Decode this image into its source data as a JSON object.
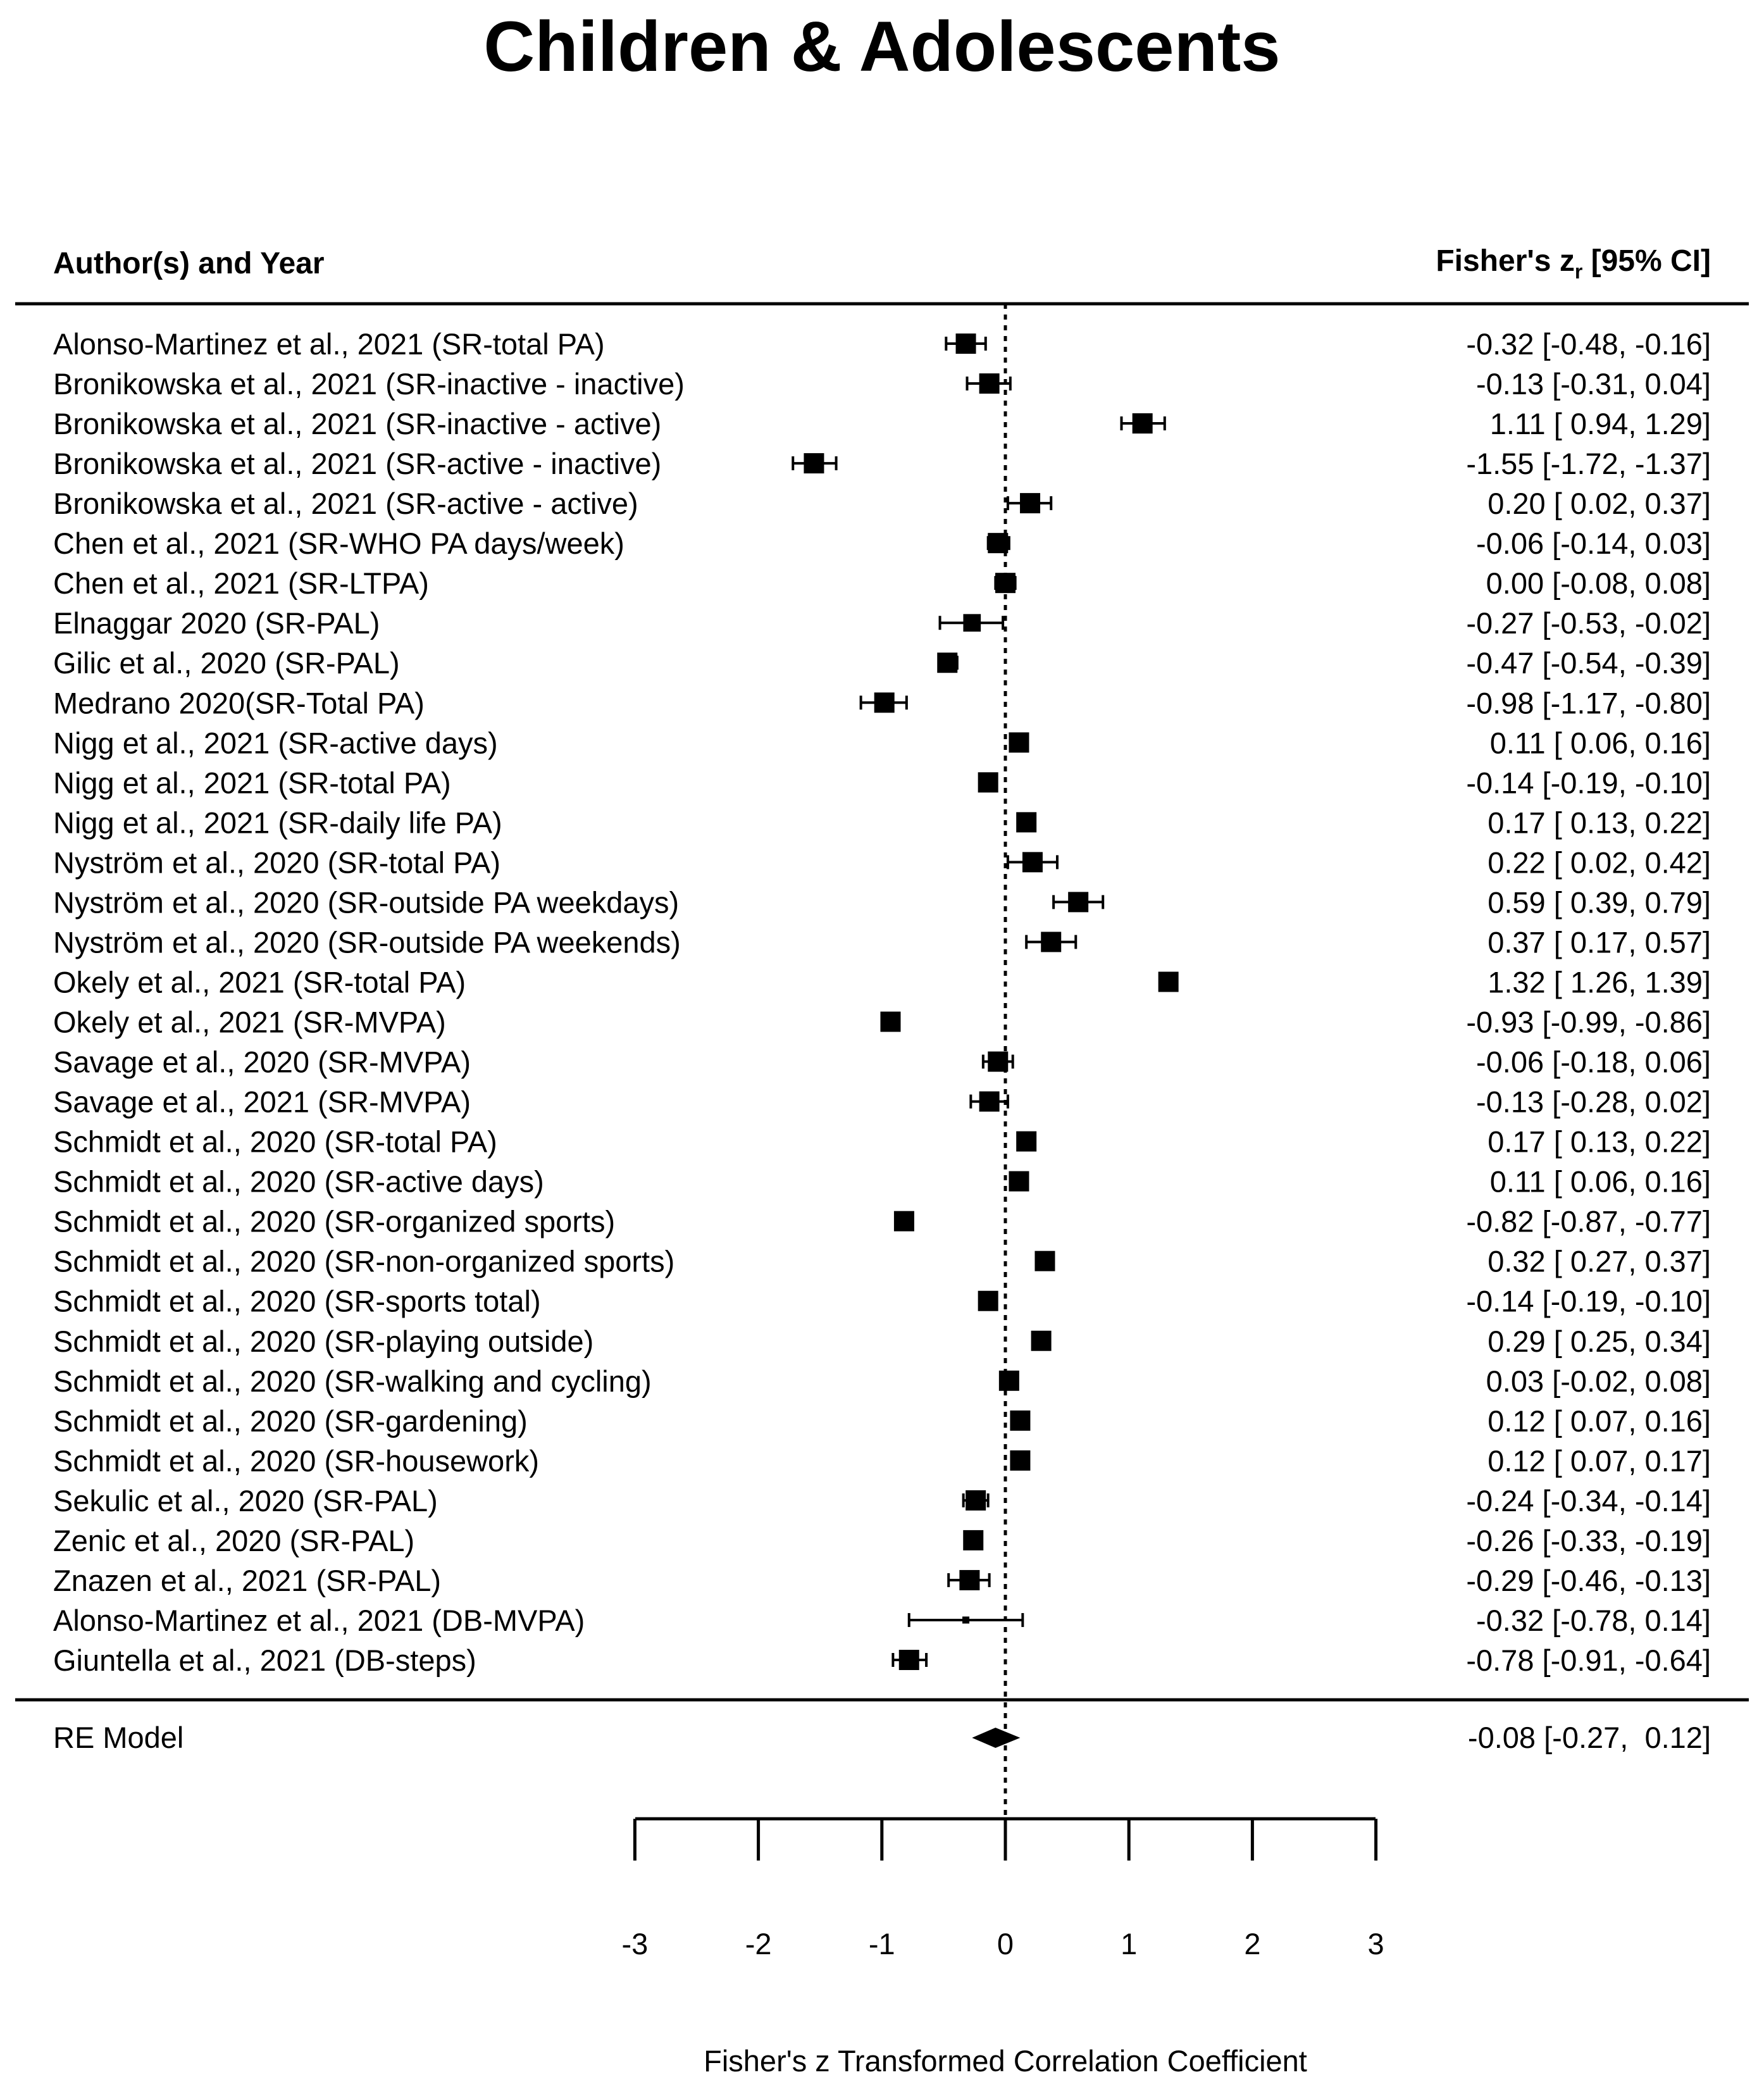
{
  "chart_data": {
    "type": "forest",
    "title": "Children & Adolescents",
    "left_header": "Author(s) and Year",
    "right_header": {
      "main": "Fisher's z",
      "subscript": "r",
      "suffix": " [95% CI]"
    },
    "xlabel": "Fisher's z Transformed Correlation Coefficient",
    "xlim": [
      -3,
      3
    ],
    "xticks": [
      -3,
      -2,
      -1,
      0,
      1,
      2,
      3
    ],
    "xtick_labels": [
      "-3",
      "-2",
      "-1",
      "0",
      "1",
      "2",
      "3"
    ],
    "reference_line": 0,
    "studies": [
      {
        "label": "Alonso-Martinez et al.,  2021 (SR-total PA)",
        "est": -0.32,
        "lo": -0.48,
        "hi": -0.16,
        "ci_text": "-0.32 [-0.48, -0.16]",
        "weight": 1.0
      },
      {
        "label": "Bronikowska et al., 2021 (SR-inactive - inactive)",
        "est": -0.13,
        "lo": -0.31,
        "hi": 0.04,
        "ci_text": "-0.13 [-0.31,  0.04]",
        "weight": 1.0
      },
      {
        "label": "Bronikowska et al., 2021 (SR-inactive - active)",
        "est": 1.11,
        "lo": 0.94,
        "hi": 1.29,
        "ci_text": "1.11 [ 0.94,  1.29]",
        "weight": 1.0
      },
      {
        "label": "Bronikowska et al., 2021 (SR-active - inactive)",
        "est": -1.55,
        "lo": -1.72,
        "hi": -1.37,
        "ci_text": "-1.55 [-1.72, -1.37]",
        "weight": 1.0
      },
      {
        "label": "Bronikowska et al., 2021 (SR-active - active)",
        "est": 0.2,
        "lo": 0.02,
        "hi": 0.37,
        "ci_text": "0.20 [ 0.02,  0.37]",
        "weight": 1.0
      },
      {
        "label": "Chen et al., 2021 (SR-WHO PA days/week)",
        "est": -0.06,
        "lo": -0.14,
        "hi": 0.03,
        "ci_text": "-0.06 [-0.14,  0.03]",
        "weight": 1.0
      },
      {
        "label": "Chen et al., 2021 (SR-LTPA)",
        "est": 0.0,
        "lo": -0.08,
        "hi": 0.08,
        "ci_text": "0.00 [-0.08,  0.08]",
        "weight": 1.0
      },
      {
        "label": "Elnaggar 2020 (SR-PAL)",
        "est": -0.27,
        "lo": -0.53,
        "hi": -0.02,
        "ci_text": "-0.27 [-0.53, -0.02]",
        "weight": 0.75
      },
      {
        "label": "Gilic et al., 2020 (SR-PAL)",
        "est": -0.47,
        "lo": -0.54,
        "hi": -0.39,
        "ci_text": "-0.47 [-0.54, -0.39]",
        "weight": 1.0
      },
      {
        "label": "Medrano 2020(SR-Total PA)",
        "est": -0.98,
        "lo": -1.17,
        "hi": -0.8,
        "ci_text": "-0.98 [-1.17, -0.80]",
        "weight": 1.0
      },
      {
        "label": "Nigg et al., 2021 (SR-active days)",
        "est": 0.11,
        "lo": 0.06,
        "hi": 0.16,
        "ci_text": "0.11 [ 0.06,  0.16]",
        "weight": 1.0
      },
      {
        "label": "Nigg et al., 2021 (SR-total PA)",
        "est": -0.14,
        "lo": -0.19,
        "hi": -0.1,
        "ci_text": "-0.14 [-0.19, -0.10]",
        "weight": 1.0
      },
      {
        "label": "Nigg et al., 2021 (SR-daily life PA)",
        "est": 0.17,
        "lo": 0.13,
        "hi": 0.22,
        "ci_text": "0.17 [ 0.13,  0.22]",
        "weight": 1.0
      },
      {
        "label": "Nyström et al., 2020 (SR-total PA)",
        "est": 0.22,
        "lo": 0.02,
        "hi": 0.42,
        "ci_text": "0.22 [ 0.02,  0.42]",
        "weight": 1.0
      },
      {
        "label": "Nyström et al., 2020 (SR-outside PA weekdays)",
        "est": 0.59,
        "lo": 0.39,
        "hi": 0.79,
        "ci_text": "0.59 [ 0.39,  0.79]",
        "weight": 1.0
      },
      {
        "label": "Nyström et al., 2020 (SR-outside PA weekends)",
        "est": 0.37,
        "lo": 0.17,
        "hi": 0.57,
        "ci_text": "0.37 [ 0.17,  0.57]",
        "weight": 1.0
      },
      {
        "label": "Okely et al., 2021 (SR-total PA)",
        "est": 1.32,
        "lo": 1.26,
        "hi": 1.39,
        "ci_text": "1.32 [ 1.26,  1.39]",
        "weight": 1.0
      },
      {
        "label": "Okely et al., 2021 (SR-MVPA)",
        "est": -0.93,
        "lo": -0.99,
        "hi": -0.86,
        "ci_text": "-0.93 [-0.99, -0.86]",
        "weight": 1.0
      },
      {
        "label": "Savage et al., 2020 (SR-MVPA)",
        "est": -0.06,
        "lo": -0.18,
        "hi": 0.06,
        "ci_text": "-0.06 [-0.18,  0.06]",
        "weight": 1.0
      },
      {
        "label": "Savage et al., 2021 (SR-MVPA)",
        "est": -0.13,
        "lo": -0.28,
        "hi": 0.02,
        "ci_text": "-0.13 [-0.28,  0.02]",
        "weight": 1.0
      },
      {
        "label": "Schmidt et al., 2020 (SR-total PA)",
        "est": 0.17,
        "lo": 0.13,
        "hi": 0.22,
        "ci_text": "0.17 [ 0.13,  0.22]",
        "weight": 1.0
      },
      {
        "label": "Schmidt et al., 2020 (SR-active days)",
        "est": 0.11,
        "lo": 0.06,
        "hi": 0.16,
        "ci_text": "0.11 [ 0.06,  0.16]",
        "weight": 1.0
      },
      {
        "label": "Schmidt et al., 2020 (SR-organized sports)",
        "est": -0.82,
        "lo": -0.87,
        "hi": -0.77,
        "ci_text": "-0.82 [-0.87, -0.77]",
        "weight": 1.0
      },
      {
        "label": "Schmidt et al., 2020 (SR-non-organized sports)",
        "est": 0.32,
        "lo": 0.27,
        "hi": 0.37,
        "ci_text": "0.32 [ 0.27,  0.37]",
        "weight": 1.0
      },
      {
        "label": "Schmidt et al., 2020 (SR-sports total)",
        "est": -0.14,
        "lo": -0.19,
        "hi": -0.1,
        "ci_text": "-0.14 [-0.19, -0.10]",
        "weight": 1.0
      },
      {
        "label": "Schmidt et al., 2020 (SR-playing outside)",
        "est": 0.29,
        "lo": 0.25,
        "hi": 0.34,
        "ci_text": "0.29 [ 0.25,  0.34]",
        "weight": 1.0
      },
      {
        "label": "Schmidt et al., 2020 (SR-walking and cycling)",
        "est": 0.03,
        "lo": -0.02,
        "hi": 0.08,
        "ci_text": "0.03 [-0.02,  0.08]",
        "weight": 1.0
      },
      {
        "label": "Schmidt et al., 2020 (SR-gardening)",
        "est": 0.12,
        "lo": 0.07,
        "hi": 0.16,
        "ci_text": "0.12 [ 0.07,  0.16]",
        "weight": 1.0
      },
      {
        "label": "Schmidt et al., 2020 (SR-housework)",
        "est": 0.12,
        "lo": 0.07,
        "hi": 0.17,
        "ci_text": "0.12 [ 0.07,  0.17]",
        "weight": 1.0
      },
      {
        "label": "Sekulic et al., 2020 (SR-PAL)",
        "est": -0.24,
        "lo": -0.34,
        "hi": -0.14,
        "ci_text": "-0.24 [-0.34, -0.14]",
        "weight": 1.0
      },
      {
        "label": "Zenic et al., 2020 (SR-PAL)",
        "est": -0.26,
        "lo": -0.33,
        "hi": -0.19,
        "ci_text": "-0.26 [-0.33, -0.19]",
        "weight": 1.0
      },
      {
        "label": "Znazen et al., 2021 (SR-PAL)",
        "est": -0.29,
        "lo": -0.46,
        "hi": -0.13,
        "ci_text": "-0.29 [-0.46, -0.13]",
        "weight": 1.0
      },
      {
        "label": "Alonso-Martinez et al.,  2021 (DB-MVPA)",
        "est": -0.32,
        "lo": -0.78,
        "hi": 0.14,
        "ci_text": "-0.32 [-0.78,  0.14]",
        "weight": 0.12
      },
      {
        "label": "Giuntella et al., 2021 (DB-steps)",
        "est": -0.78,
        "lo": -0.91,
        "hi": -0.64,
        "ci_text": "-0.78 [-0.91, -0.64]",
        "weight": 1.0
      }
    ],
    "summary": {
      "label": "RE Model",
      "est": -0.08,
      "lo": -0.27,
      "hi": 0.12,
      "ci_text": "-0.08 [-0.27,  0.12]"
    }
  }
}
